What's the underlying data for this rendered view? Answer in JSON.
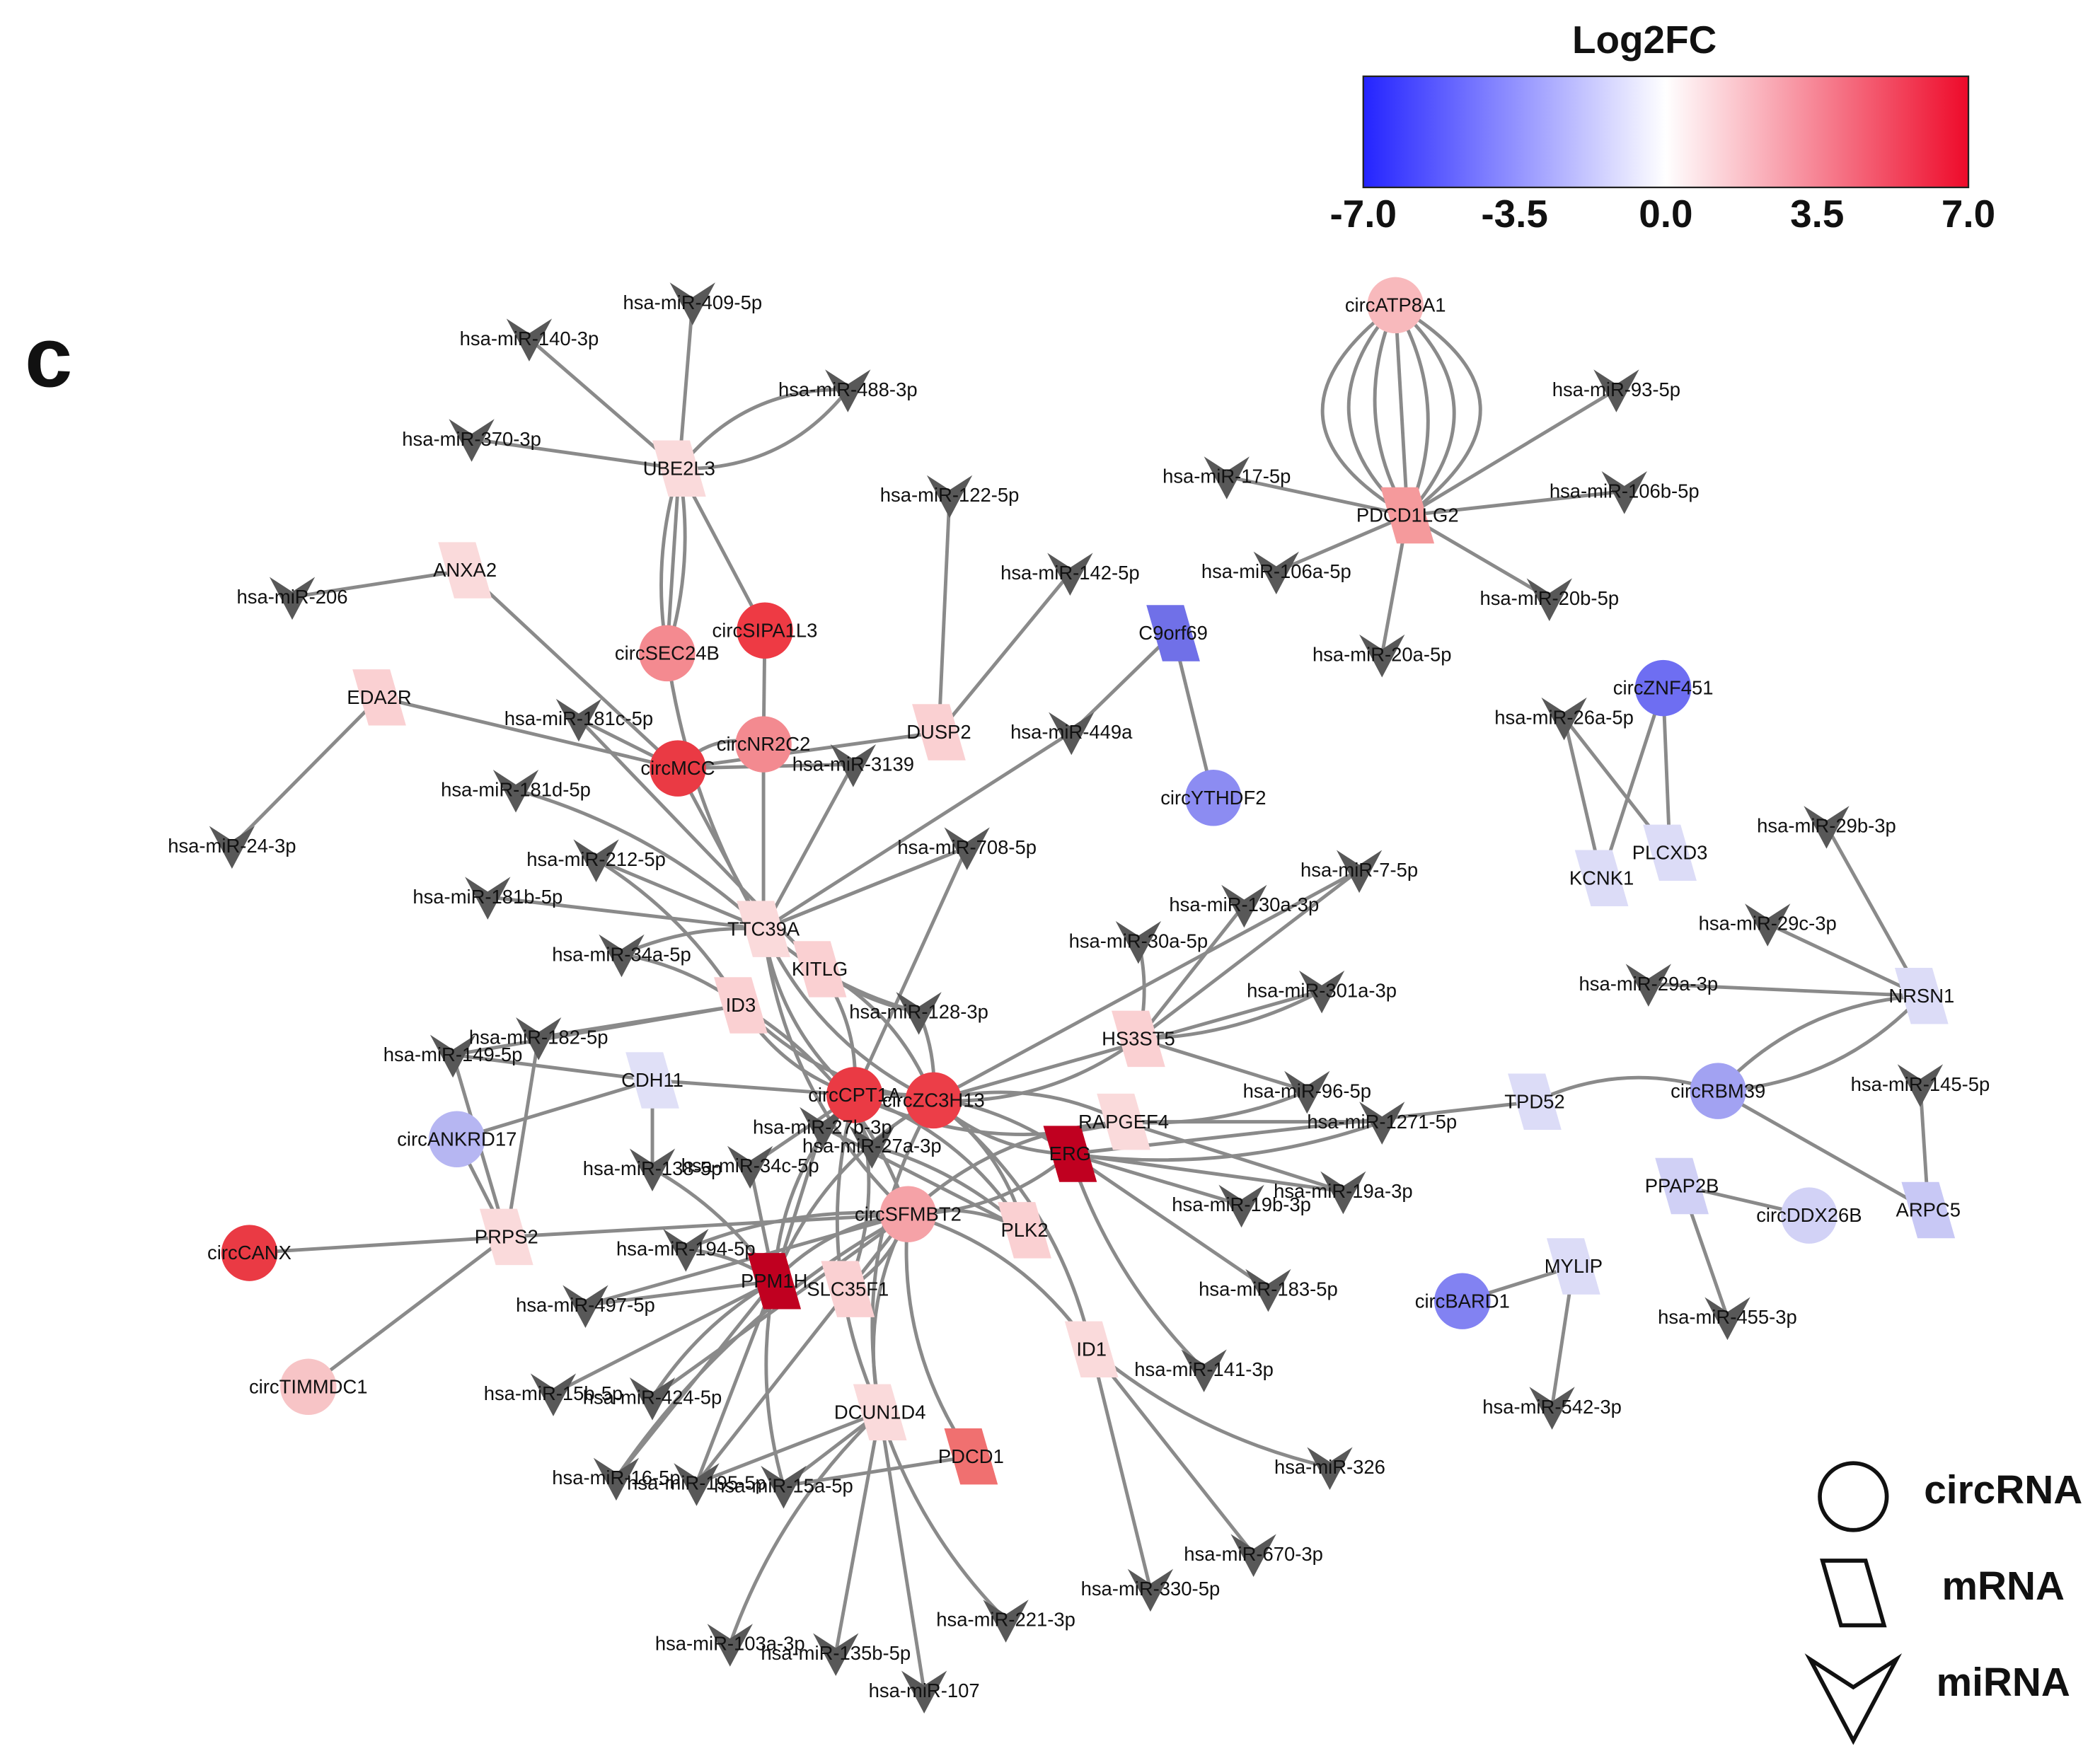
{
  "panel_label": "c",
  "legend": {
    "title": "Log2FC",
    "colors": [
      "#2424ff",
      "#ffffff",
      "#ee0a2a"
    ],
    "ticks": [
      {
        "value": -7,
        "label": "-7.0"
      },
      {
        "value": -3.5,
        "label": "-3.5"
      },
      {
        "value": 0,
        "label": "0.0"
      },
      {
        "value": 3.5,
        "label": "3.5"
      },
      {
        "value": 7,
        "label": "7.0"
      }
    ],
    "lim": [
      -7,
      7
    ],
    "shapes": [
      {
        "label": "circRNA",
        "shape": "circle"
      },
      {
        "label": "mRNA",
        "shape": "parallelogram"
      },
      {
        "label": "miRNA",
        "shape": "chevron"
      }
    ]
  },
  "nodes": [
    {
      "label": "hsa-miR-409-5p",
      "shape": "chevron",
      "color": "#585858"
    },
    {
      "label": "hsa-miR-140-3p",
      "shape": "chevron",
      "color": "#585858"
    },
    {
      "label": "hsa-miR-488-3p",
      "shape": "chevron",
      "color": "#585858"
    },
    {
      "label": "hsa-miR-370-3p",
      "shape": "chevron",
      "color": "#585858"
    },
    {
      "label": "hsa-miR-122-5p",
      "shape": "chevron",
      "color": "#585858"
    },
    {
      "label": "hsa-miR-206",
      "shape": "chevron",
      "color": "#585858"
    },
    {
      "label": "hsa-miR-142-5p",
      "shape": "chevron",
      "color": "#585858"
    },
    {
      "label": "hsa-miR-181c-5p",
      "shape": "chevron",
      "color": "#585858"
    },
    {
      "label": "hsa-miR-3139",
      "shape": "chevron",
      "color": "#585858"
    },
    {
      "label": "hsa-miR-449a",
      "shape": "chevron",
      "color": "#585858"
    },
    {
      "label": "hsa-miR-181d-5p",
      "shape": "chevron",
      "color": "#585858"
    },
    {
      "label": "hsa-miR-24-3p",
      "shape": "chevron",
      "color": "#585858"
    },
    {
      "label": "hsa-miR-212-5p",
      "shape": "chevron",
      "color": "#585858"
    },
    {
      "label": "hsa-miR-708-5p",
      "shape": "chevron",
      "color": "#585858"
    },
    {
      "label": "hsa-miR-181b-5p",
      "shape": "chevron",
      "color": "#585858"
    },
    {
      "label": "hsa-miR-34a-5p",
      "shape": "chevron",
      "color": "#585858"
    },
    {
      "label": "hsa-miR-128-3p",
      "shape": "chevron",
      "color": "#585858"
    },
    {
      "label": "hsa-miR-182-5p",
      "shape": "chevron",
      "color": "#585858"
    },
    {
      "label": "hsa-miR-149-5p",
      "shape": "chevron",
      "color": "#585858"
    },
    {
      "label": "hsa-miR-27b-3p",
      "shape": "chevron",
      "color": "#585858"
    },
    {
      "label": "hsa-miR-27a-3p",
      "shape": "chevron",
      "color": "#585858"
    },
    {
      "label": "hsa-miR-138-5p",
      "shape": "chevron",
      "color": "#585858"
    },
    {
      "label": "hsa-miR-34c-5p",
      "shape": "chevron",
      "color": "#585858"
    },
    {
      "label": "hsa-miR-194-5p",
      "shape": "chevron",
      "color": "#585858"
    },
    {
      "label": "hsa-miR-497-5p",
      "shape": "chevron",
      "color": "#585858"
    },
    {
      "label": "hsa-miR-15b-5p",
      "shape": "chevron",
      "color": "#585858"
    },
    {
      "label": "hsa-miR-424-5p",
      "shape": "chevron",
      "color": "#585858"
    },
    {
      "label": "hsa-miR-16-5p",
      "shape": "chevron",
      "color": "#585858"
    },
    {
      "label": "hsa-miR-195-5p",
      "shape": "chevron",
      "color": "#585858"
    },
    {
      "label": "hsa-miR-15a-5p",
      "shape": "chevron",
      "color": "#585858"
    },
    {
      "label": "hsa-miR-103a-3p",
      "shape": "chevron",
      "color": "#585858"
    },
    {
      "label": "hsa-miR-135b-5p",
      "shape": "chevron",
      "color": "#585858"
    },
    {
      "label": "hsa-miR-107",
      "shape": "chevron",
      "color": "#585858"
    },
    {
      "label": "hsa-miR-221-3p",
      "shape": "chevron",
      "color": "#585858"
    },
    {
      "label": "hsa-miR-330-5p",
      "shape": "chevron",
      "color": "#585858"
    },
    {
      "label": "hsa-miR-670-3p",
      "shape": "chevron",
      "color": "#585858"
    },
    {
      "label": "hsa-miR-326",
      "shape": "chevron",
      "color": "#585858"
    },
    {
      "label": "hsa-miR-141-3p",
      "shape": "chevron",
      "color": "#585858"
    },
    {
      "label": "hsa-miR-183-5p",
      "shape": "chevron",
      "color": "#585858"
    },
    {
      "label": "hsa-miR-19b-3p",
      "shape": "chevron",
      "color": "#585858"
    },
    {
      "label": "hsa-miR-19a-3p",
      "shape": "chevron",
      "color": "#585858"
    },
    {
      "label": "hsa-miR-1271-5p",
      "shape": "chevron",
      "color": "#585858"
    },
    {
      "label": "hsa-miR-96-5p",
      "shape": "chevron",
      "color": "#585858"
    },
    {
      "label": "hsa-miR-301a-3p",
      "shape": "chevron",
      "color": "#585858"
    },
    {
      "label": "hsa-miR-130a-3p",
      "shape": "chevron",
      "color": "#585858"
    },
    {
      "label": "hsa-miR-30a-5p",
      "shape": "chevron",
      "color": "#585858"
    },
    {
      "label": "hsa-miR-7-5p",
      "shape": "chevron",
      "color": "#585858"
    },
    {
      "label": "hsa-miR-17-5p",
      "shape": "chevron",
      "color": "#585858"
    },
    {
      "label": "hsa-miR-106a-5p",
      "shape": "chevron",
      "color": "#585858"
    },
    {
      "label": "hsa-miR-20a-5p",
      "shape": "chevron",
      "color": "#585858"
    },
    {
      "label": "hsa-miR-20b-5p",
      "shape": "chevron",
      "color": "#585858"
    },
    {
      "label": "hsa-miR-106b-5p",
      "shape": "chevron",
      "color": "#585858"
    },
    {
      "label": "hsa-miR-93-5p",
      "shape": "chevron",
      "color": "#585858"
    },
    {
      "label": "hsa-miR-26a-5p",
      "shape": "chevron",
      "color": "#585858"
    },
    {
      "label": "hsa-miR-29b-3p",
      "shape": "chevron",
      "color": "#585858"
    },
    {
      "label": "hsa-miR-29c-3p",
      "shape": "chevron",
      "color": "#585858"
    },
    {
      "label": "hsa-miR-29a-3p",
      "shape": "chevron",
      "color": "#585858"
    },
    {
      "label": "hsa-miR-145-5p",
      "shape": "chevron",
      "color": "#585858"
    },
    {
      "label": "hsa-miR-455-3p",
      "shape": "chevron",
      "color": "#585858"
    },
    {
      "label": "hsa-miR-542-3p",
      "shape": "chevron",
      "color": "#585858"
    },
    {
      "label": "circATP8A1",
      "shape": "circle",
      "color": "#f8b9bc"
    },
    {
      "label": "circSIPA1L3",
      "shape": "circle",
      "color": "#ee3a44"
    },
    {
      "label": "circSEC24B",
      "shape": "circle",
      "color": "#f48a90"
    },
    {
      "label": "circNR2C2",
      "shape": "circle",
      "color": "#f38a90"
    },
    {
      "label": "circMCC",
      "shape": "circle",
      "color": "#ea3a44"
    },
    {
      "label": "circZNF451",
      "shape": "circle",
      "color": "#6e6ef2"
    },
    {
      "label": "circYTHDF2",
      "shape": "circle",
      "color": "#8c8cf2"
    },
    {
      "label": "circCPT1A",
      "shape": "circle",
      "color": "#ea3a44"
    },
    {
      "label": "circZC3H13",
      "shape": "circle",
      "color": "#ec3e48"
    },
    {
      "label": "circRBM39",
      "shape": "circle",
      "color": "#a2a2f2"
    },
    {
      "label": "circANKRD17",
      "shape": "circle",
      "color": "#b6b6f2"
    },
    {
      "label": "circSFMBT2",
      "shape": "circle",
      "color": "#f5a2a7"
    },
    {
      "label": "circDDX26B",
      "shape": "circle",
      "color": "#d2d2f6"
    },
    {
      "label": "circCANX",
      "shape": "circle",
      "color": "#ea3a44"
    },
    {
      "label": "circBARD1",
      "shape": "circle",
      "color": "#8282f2"
    },
    {
      "label": "circTIMMDC1",
      "shape": "circle",
      "color": "#f7c4c6"
    },
    {
      "label": "UBE2L3",
      "shape": "parallelogram",
      "color": "#fadadb"
    },
    {
      "label": "ANXA2",
      "shape": "parallelogram",
      "color": "#fadadb"
    },
    {
      "label": "EDA2R",
      "shape": "parallelogram",
      "color": "#fad0d2"
    },
    {
      "label": "DUSP2",
      "shape": "parallelogram",
      "color": "#fad0d2"
    },
    {
      "label": "C9orf69",
      "shape": "parallelogram",
      "color": "#7070e8"
    },
    {
      "label": "PDCD1LG2",
      "shape": "parallelogram",
      "color": "#f59a9c"
    },
    {
      "label": "TTC39A",
      "shape": "parallelogram",
      "color": "#fadadb"
    },
    {
      "label": "KITLG",
      "shape": "parallelogram",
      "color": "#fad0d2"
    },
    {
      "label": "ID3",
      "shape": "parallelogram",
      "color": "#fad0d2"
    },
    {
      "label": "HS3ST5",
      "shape": "parallelogram",
      "color": "#fad0d2"
    },
    {
      "label": "CDH11",
      "shape": "parallelogram",
      "color": "#e0e0f7"
    },
    {
      "label": "RAPGEF4",
      "shape": "parallelogram",
      "color": "#fadadb"
    },
    {
      "label": "ERG",
      "shape": "parallelogram",
      "color": "#c00020"
    },
    {
      "label": "PLK2",
      "shape": "parallelogram",
      "color": "#fad0d2"
    },
    {
      "label": "PPM1H",
      "shape": "parallelogram",
      "color": "#c00020"
    },
    {
      "label": "SLC35F1",
      "shape": "parallelogram",
      "color": "#fad0d2"
    },
    {
      "label": "PRPS2",
      "shape": "parallelogram",
      "color": "#fadadb"
    },
    {
      "label": "ID1",
      "shape": "parallelogram",
      "color": "#fadadb"
    },
    {
      "label": "DCUN1D4",
      "shape": "parallelogram",
      "color": "#fadadb"
    },
    {
      "label": "PDCD1",
      "shape": "parallelogram",
      "color": "#f07070"
    },
    {
      "label": "TPD52",
      "shape": "parallelogram",
      "color": "#dcdcf7"
    },
    {
      "label": "KCNK1",
      "shape": "parallelogram",
      "color": "#dcdcf7"
    },
    {
      "label": "PLCXD3",
      "shape": "parallelogram",
      "color": "#dcdcf7"
    },
    {
      "label": "NRSN1",
      "shape": "parallelogram",
      "color": "#dcdcf7"
    },
    {
      "label": "PPAP2B",
      "shape": "parallelogram",
      "color": "#d0d0f5"
    },
    {
      "label": "ARPC5",
      "shape": "parallelogram",
      "color": "#c8c8f5"
    },
    {
      "label": "MYLIP",
      "shape": "parallelogram",
      "color": "#dcdcf7"
    }
  ]
}
